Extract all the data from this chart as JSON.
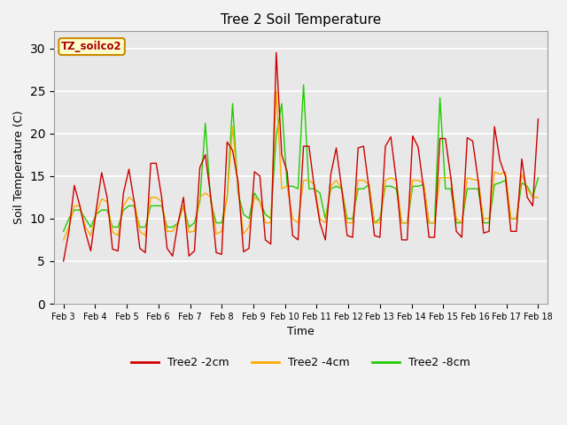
{
  "title": "Tree 2 Soil Temperature",
  "xlabel": "Time",
  "ylabel": "Soil Temperature (C)",
  "ylim": [
    0,
    32
  ],
  "yticks": [
    0,
    5,
    10,
    15,
    20,
    25,
    30
  ],
  "bg_color": "#e8e8e8",
  "fig_bg_color": "#f2f2f2",
  "legend_label": "TZ_soilco2",
  "series_colors": [
    "#cc0000",
    "#ffaa00",
    "#22cc00"
  ],
  "series_labels": [
    "Tree2 -2cm",
    "Tree2 -4cm",
    "Tree2 -8cm"
  ],
  "x_tick_labels": [
    "Feb 3",
    "Feb 4",
    "Feb 5",
    "Feb 6",
    "Feb 7",
    "Feb 8",
    "Feb 9",
    "Feb 10",
    "Feb 11",
    "Feb 12",
    "Feb 13",
    "Feb 14",
    "Feb 15",
    "Feb 16",
    "Feb 17",
    "Feb 18"
  ],
  "data_2cm": [
    5.0,
    8.5,
    13.9,
    11.5,
    8.5,
    6.2,
    11.0,
    15.4,
    12.5,
    6.4,
    6.2,
    13.0,
    15.8,
    11.8,
    6.5,
    6.0,
    16.5,
    16.5,
    12.5,
    6.5,
    5.6,
    9.5,
    12.5,
    5.6,
    6.2,
    16.0,
    17.5,
    12.5,
    6.0,
    5.8,
    19.0,
    18.0,
    14.3,
    6.1,
    6.5,
    15.5,
    15.0,
    7.5,
    7.0,
    29.5,
    17.5,
    15.5,
    8.0,
    7.5,
    18.5,
    18.5,
    13.5,
    9.5,
    7.5,
    15.2,
    18.3,
    13.5,
    8.0,
    7.8,
    18.3,
    18.5,
    13.5,
    8.0,
    7.8,
    18.5,
    19.6,
    14.5,
    7.5,
    7.5,
    19.7,
    18.4,
    13.5,
    7.8,
    7.8,
    19.4,
    19.4,
    14.8,
    8.5,
    7.8,
    19.5,
    19.1,
    14.5,
    8.3,
    8.5,
    20.8,
    16.8,
    15.0,
    8.5,
    8.5,
    17.0,
    12.5,
    11.5,
    21.7
  ],
  "data_4cm": [
    7.5,
    9.0,
    11.5,
    11.5,
    9.0,
    8.0,
    10.5,
    12.3,
    12.0,
    8.4,
    8.0,
    11.5,
    12.5,
    12.0,
    8.5,
    8.0,
    12.5,
    12.5,
    12.0,
    8.5,
    8.5,
    9.5,
    11.5,
    8.4,
    8.5,
    12.5,
    13.0,
    12.5,
    8.2,
    8.5,
    12.5,
    20.8,
    13.5,
    8.2,
    9.0,
    12.5,
    12.0,
    9.5,
    9.5,
    25.0,
    13.5,
    13.8,
    10.0,
    9.5,
    14.5,
    14.5,
    14.0,
    10.0,
    9.5,
    13.8,
    14.5,
    13.5,
    9.5,
    9.5,
    14.5,
    14.5,
    14.0,
    9.5,
    9.5,
    14.5,
    14.8,
    14.5,
    9.5,
    9.5,
    14.5,
    14.5,
    14.2,
    9.5,
    9.5,
    14.8,
    14.8,
    14.8,
    10.0,
    9.5,
    14.8,
    14.6,
    14.5,
    10.0,
    10.0,
    15.5,
    15.2,
    15.5,
    10.0,
    10.0,
    15.2,
    13.5,
    12.5,
    12.5
  ],
  "data_8cm": [
    8.5,
    10.0,
    11.0,
    11.0,
    10.0,
    9.0,
    10.5,
    11.0,
    11.0,
    9.0,
    9.0,
    11.0,
    11.5,
    11.5,
    9.0,
    9.0,
    11.5,
    11.5,
    11.5,
    9.0,
    9.0,
    9.5,
    11.5,
    9.0,
    9.5,
    12.0,
    21.2,
    12.0,
    9.5,
    9.5,
    12.5,
    23.5,
    13.0,
    10.5,
    10.0,
    13.0,
    12.0,
    10.5,
    10.0,
    19.8,
    23.5,
    13.8,
    13.8,
    13.5,
    25.7,
    13.5,
    13.5,
    13.0,
    10.0,
    13.5,
    13.8,
    13.5,
    10.0,
    10.0,
    13.5,
    13.5,
    14.0,
    9.5,
    10.0,
    13.8,
    13.8,
    13.5,
    9.5,
    9.5,
    13.8,
    13.8,
    14.0,
    9.5,
    9.5,
    24.2,
    13.5,
    13.5,
    9.5,
    9.5,
    13.5,
    13.5,
    13.5,
    9.5,
    9.5,
    14.0,
    14.2,
    14.5,
    10.0,
    10.0,
    14.2,
    13.8,
    12.5,
    14.8
  ]
}
